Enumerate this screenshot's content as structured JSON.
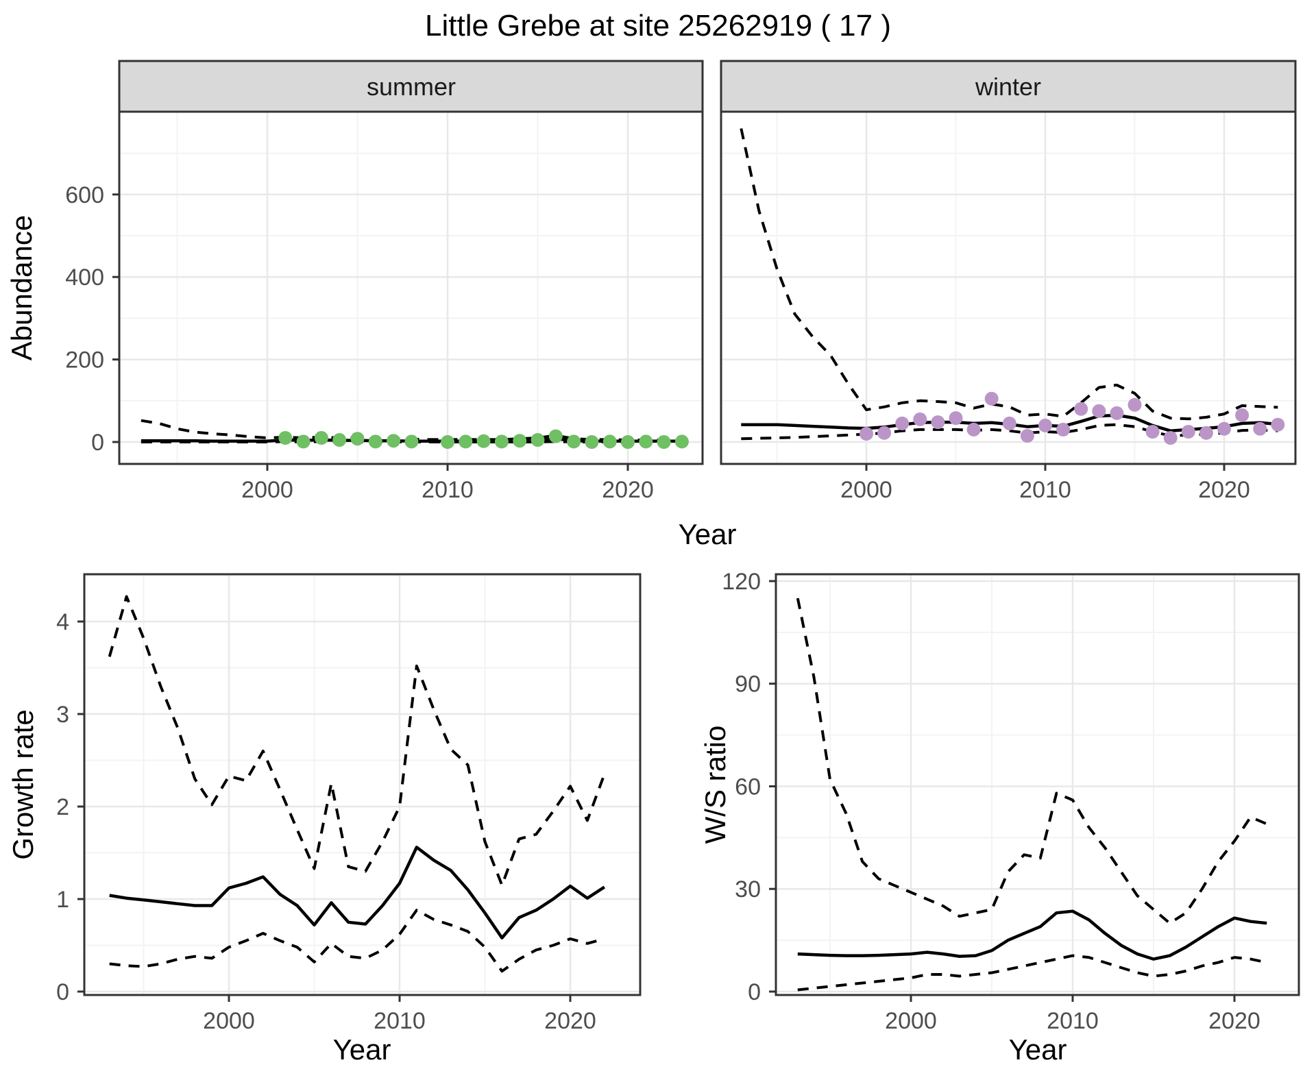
{
  "title": "Little Grebe at site 25262919 ( 17 )",
  "colors": {
    "summer_point": "#6fbf63",
    "winter_point": "#bb95c8",
    "line": "#000000",
    "strip_fill": "#d9d9d9",
    "strip_border": "#333333",
    "panel_border": "#333333",
    "grid_major": "#e8e8e8",
    "grid_minor": "#f3f3f3",
    "tick_color": "#333333",
    "tick_label": "#4d4d4d",
    "background": "#ffffff"
  },
  "chart_data": [
    {
      "id": "abundance-summer",
      "type": "line",
      "facet_label": "summer",
      "xlabel": "Year",
      "ylabel": "Abundance",
      "xlim": [
        1993,
        2023
      ],
      "ylim": [
        0,
        800
      ],
      "x_ticks": [
        2000,
        2010,
        2020
      ],
      "y_ticks": [
        0,
        200,
        400,
        600
      ],
      "grid": true,
      "years": [
        1993,
        1994,
        1995,
        1996,
        1997,
        1998,
        1999,
        2000,
        2001,
        2002,
        2003,
        2004,
        2005,
        2006,
        2007,
        2008,
        2009,
        2010,
        2011,
        2012,
        2013,
        2014,
        2015,
        2016,
        2017,
        2018,
        2019,
        2020,
        2021,
        2022,
        2023
      ],
      "series": [
        {
          "name": "median",
          "style": "solid",
          "values": [
            3,
            3,
            3,
            3,
            2,
            2,
            2,
            2,
            5,
            4,
            5,
            4,
            4,
            3,
            3,
            2,
            2,
            2,
            2,
            2,
            2,
            3,
            4,
            8,
            3,
            2,
            2,
            2,
            2,
            2,
            2
          ]
        },
        {
          "name": "upper-ci",
          "style": "dashed",
          "values": [
            52,
            45,
            32,
            24,
            20,
            17,
            13,
            10,
            12,
            10,
            12,
            10,
            10,
            8,
            8,
            7,
            6,
            6,
            6,
            6,
            6,
            8,
            10,
            16,
            8,
            6,
            6,
            5,
            5,
            5,
            6
          ]
        },
        {
          "name": "lower-ci",
          "style": "dashed",
          "values": [
            0,
            0,
            0,
            0,
            0,
            0,
            0,
            0,
            1,
            0,
            1,
            0,
            0,
            0,
            0,
            0,
            0,
            0,
            0,
            0,
            0,
            0,
            0,
            1,
            0,
            0,
            0,
            0,
            0,
            0,
            0
          ]
        }
      ],
      "points": {
        "color_key": "summer_point",
        "data": [
          [
            2001,
            10
          ],
          [
            2002,
            1
          ],
          [
            2003,
            10
          ],
          [
            2004,
            5
          ],
          [
            2005,
            8
          ],
          [
            2006,
            1
          ],
          [
            2007,
            3
          ],
          [
            2008,
            1
          ],
          [
            2010,
            0
          ],
          [
            2011,
            1
          ],
          [
            2012,
            2
          ],
          [
            2013,
            1
          ],
          [
            2014,
            3
          ],
          [
            2015,
            5
          ],
          [
            2016,
            14
          ],
          [
            2017,
            1
          ],
          [
            2018,
            0
          ],
          [
            2019,
            1
          ],
          [
            2020,
            0
          ],
          [
            2021,
            1
          ],
          [
            2022,
            0
          ],
          [
            2023,
            1
          ]
        ]
      }
    },
    {
      "id": "abundance-winter",
      "type": "line",
      "facet_label": "winter",
      "xlabel": "Year",
      "ylabel": "Abundance",
      "xlim": [
        1993,
        2023
      ],
      "ylim": [
        0,
        800
      ],
      "x_ticks": [
        2000,
        2010,
        2020
      ],
      "y_ticks": [
        0,
        200,
        400,
        600
      ],
      "grid": true,
      "years": [
        1993,
        1994,
        1995,
        1996,
        1997,
        1998,
        1999,
        2000,
        2001,
        2002,
        2003,
        2004,
        2005,
        2006,
        2007,
        2008,
        2009,
        2010,
        2011,
        2012,
        2013,
        2014,
        2015,
        2016,
        2017,
        2018,
        2019,
        2020,
        2021,
        2022,
        2023
      ],
      "series": [
        {
          "name": "median",
          "style": "solid",
          "values": [
            42,
            42,
            42,
            40,
            38,
            36,
            34,
            33,
            36,
            42,
            47,
            48,
            48,
            45,
            47,
            43,
            37,
            40,
            38,
            50,
            63,
            65,
            58,
            40,
            27,
            30,
            33,
            37,
            45,
            47,
            43
          ]
        },
        {
          "name": "upper-ci",
          "style": "dashed",
          "values": [
            760,
            560,
            420,
            310,
            255,
            210,
            140,
            78,
            85,
            95,
            100,
            98,
            95,
            82,
            92,
            85,
            65,
            68,
            62,
            95,
            132,
            138,
            118,
            75,
            58,
            56,
            60,
            68,
            88,
            86,
            84
          ]
        },
        {
          "name": "lower-ci",
          "style": "dashed",
          "values": [
            8,
            9,
            10,
            11,
            13,
            15,
            17,
            19,
            22,
            27,
            30,
            30,
            30,
            28,
            30,
            27,
            22,
            25,
            23,
            30,
            40,
            42,
            37,
            25,
            15,
            17,
            19,
            22,
            28,
            29,
            27
          ]
        }
      ],
      "points": {
        "color_key": "winter_point",
        "data": [
          [
            2000,
            20
          ],
          [
            2001,
            22
          ],
          [
            2002,
            45
          ],
          [
            2003,
            55
          ],
          [
            2004,
            48
          ],
          [
            2005,
            58
          ],
          [
            2006,
            30
          ],
          [
            2007,
            105
          ],
          [
            2008,
            45
          ],
          [
            2009,
            15
          ],
          [
            2010,
            40
          ],
          [
            2011,
            30
          ],
          [
            2012,
            80
          ],
          [
            2013,
            75
          ],
          [
            2014,
            70
          ],
          [
            2015,
            90
          ],
          [
            2016,
            25
          ],
          [
            2017,
            10
          ],
          [
            2018,
            25
          ],
          [
            2019,
            22
          ],
          [
            2020,
            32
          ],
          [
            2021,
            65
          ],
          [
            2022,
            32
          ],
          [
            2023,
            42
          ]
        ]
      }
    },
    {
      "id": "growth-rate",
      "type": "line",
      "xlabel": "Year",
      "ylabel": "Growth rate",
      "xlim": [
        1993,
        2022
      ],
      "ylim": [
        0,
        4.5
      ],
      "x_ticks": [
        2000,
        2010,
        2020
      ],
      "y_ticks": [
        0,
        1,
        2,
        3,
        4
      ],
      "grid": true,
      "years": [
        1993,
        1994,
        1995,
        1996,
        1997,
        1998,
        1999,
        2000,
        2001,
        2002,
        2003,
        2004,
        2005,
        2006,
        2007,
        2008,
        2009,
        2010,
        2011,
        2012,
        2013,
        2014,
        2015,
        2016,
        2017,
        2018,
        2019,
        2020,
        2021,
        2022
      ],
      "series": [
        {
          "name": "median",
          "style": "solid",
          "values": [
            1.04,
            1.01,
            0.99,
            0.97,
            0.95,
            0.93,
            0.93,
            1.12,
            1.17,
            1.24,
            1.05,
            0.93,
            0.72,
            0.96,
            0.75,
            0.73,
            0.93,
            1.17,
            1.56,
            1.42,
            1.31,
            1.1,
            0.85,
            0.58,
            0.8,
            0.88,
            1.0,
            1.14,
            1.01,
            1.13
          ]
        },
        {
          "name": "upper-ci",
          "style": "dashed",
          "values": [
            3.62,
            4.27,
            3.82,
            3.3,
            2.85,
            2.3,
            2.02,
            2.33,
            2.28,
            2.6,
            2.18,
            1.75,
            1.33,
            2.25,
            1.35,
            1.3,
            1.62,
            2.0,
            3.52,
            3.05,
            2.62,
            2.45,
            1.62,
            1.15,
            1.65,
            1.7,
            1.95,
            2.22,
            1.85,
            2.35
          ]
        },
        {
          "name": "lower-ci",
          "style": "dashed",
          "values": [
            0.3,
            0.28,
            0.27,
            0.3,
            0.35,
            0.38,
            0.36,
            0.48,
            0.55,
            0.63,
            0.55,
            0.48,
            0.32,
            0.52,
            0.38,
            0.36,
            0.45,
            0.62,
            0.88,
            0.78,
            0.72,
            0.65,
            0.48,
            0.22,
            0.35,
            0.45,
            0.5,
            0.57,
            0.52,
            0.57
          ]
        }
      ]
    },
    {
      "id": "ws-ratio",
      "type": "line",
      "xlabel": "Year",
      "ylabel": "W/S ratio",
      "xlim": [
        1993,
        2022
      ],
      "ylim": [
        0,
        120
      ],
      "x_ticks": [
        2000,
        2010,
        2020
      ],
      "y_ticks": [
        0,
        30,
        60,
        90,
        120
      ],
      "grid": true,
      "years": [
        1993,
        1994,
        1995,
        1996,
        1997,
        1998,
        1999,
        2000,
        2001,
        2002,
        2003,
        2004,
        2005,
        2006,
        2007,
        2008,
        2009,
        2010,
        2011,
        2012,
        2013,
        2014,
        2015,
        2016,
        2017,
        2018,
        2019,
        2020,
        2021,
        2022
      ],
      "series": [
        {
          "name": "median",
          "style": "solid",
          "values": [
            11,
            10.8,
            10.6,
            10.5,
            10.5,
            10.6,
            10.8,
            11,
            11.5,
            11,
            10.3,
            10.5,
            12,
            15,
            17,
            19,
            23,
            23.5,
            21,
            17,
            13.5,
            11,
            9.5,
            10.5,
            13,
            16,
            19,
            21.5,
            20.5,
            20
          ]
        },
        {
          "name": "upper-ci",
          "style": "dashed",
          "values": [
            115,
            92,
            62,
            52,
            38,
            33,
            31,
            29,
            27,
            25,
            22,
            23,
            24,
            35,
            40,
            39,
            58,
            56,
            48,
            42,
            35,
            28,
            24,
            20,
            23,
            30,
            38,
            44,
            51,
            49
          ]
        },
        {
          "name": "lower-ci",
          "style": "dashed",
          "values": [
            0.5,
            1,
            1.5,
            2,
            2.5,
            3,
            3.5,
            4,
            5,
            5,
            4.5,
            5,
            5.5,
            6.5,
            7.5,
            8.5,
            9.5,
            10.5,
            10,
            8.5,
            7,
            5.5,
            4.5,
            5,
            6,
            7.5,
            8.5,
            10,
            9.5,
            8.5
          ]
        }
      ]
    }
  ]
}
